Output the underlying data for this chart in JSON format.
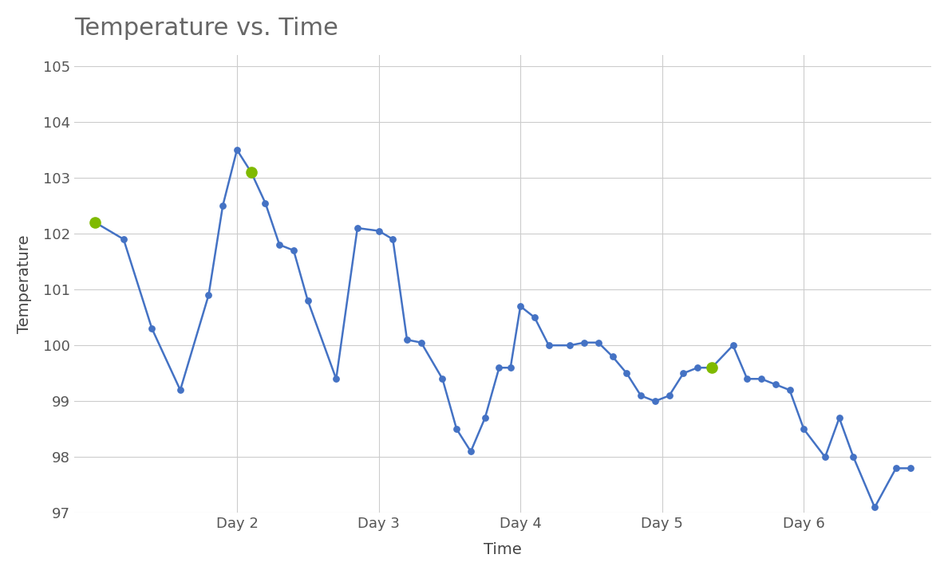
{
  "title": "Temperature vs. Time",
  "xlabel": "Time",
  "ylabel": "Temperature",
  "ylim": [
    97,
    105.2
  ],
  "yticks": [
    97,
    98,
    99,
    100,
    101,
    102,
    103,
    104,
    105
  ],
  "line_color": "#4472C4",
  "green_color": "#7FBA00",
  "background_color": "#ffffff",
  "grid_color": "#cccccc",
  "title_color": "#666666",
  "time_values": [
    1.0,
    1.2,
    1.4,
    1.6,
    1.8,
    1.9,
    2.0,
    2.1,
    2.2,
    2.3,
    2.4,
    2.5,
    2.7,
    2.85,
    3.0,
    3.1,
    3.2,
    3.3,
    3.45,
    3.55,
    3.65,
    3.75,
    3.85,
    3.93,
    4.0,
    4.1,
    4.2,
    4.35,
    4.45,
    4.55,
    4.65,
    4.75,
    4.85,
    4.95,
    5.05,
    5.15,
    5.25,
    5.35,
    5.5,
    5.6,
    5.7,
    5.8,
    5.9,
    6.0,
    6.15,
    6.25,
    6.35,
    6.5,
    6.65,
    6.75
  ],
  "temp_values": [
    102.2,
    101.9,
    100.3,
    99.2,
    100.9,
    102.5,
    103.5,
    103.1,
    102.55,
    101.8,
    101.7,
    100.8,
    99.4,
    102.1,
    102.05,
    101.9,
    100.1,
    100.05,
    99.4,
    98.5,
    98.1,
    98.7,
    99.6,
    99.6,
    100.7,
    100.5,
    100.0,
    100.0,
    100.05,
    100.05,
    99.8,
    99.5,
    99.1,
    99.0,
    99.1,
    99.5,
    99.6,
    99.6,
    100.0,
    99.4,
    99.4,
    99.3,
    99.2,
    98.5,
    98.0,
    98.7,
    98.0,
    97.1,
    97.8,
    97.8
  ],
  "green_indices": [
    0,
    7,
    37
  ],
  "xtick_positions": [
    2,
    3,
    4,
    5,
    6
  ],
  "xtick_labels": [
    "Day 2",
    "Day 3",
    "Day 4",
    "Day 5",
    "Day 6"
  ],
  "xlim": [
    0.85,
    6.9
  ]
}
